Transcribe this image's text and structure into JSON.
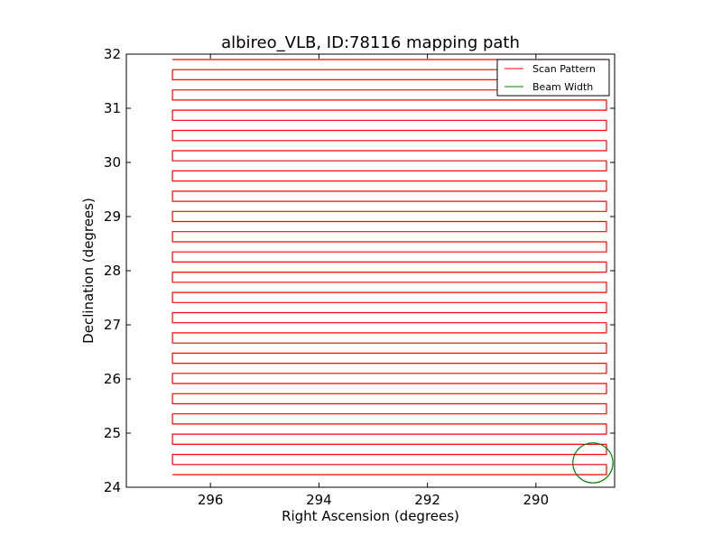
{
  "chart_data": {
    "type": "line",
    "title": "albireo_VLB, ID:78116 mapping path",
    "xlabel": "Right Ascension (degrees)",
    "ylabel": "Declination (degrees)",
    "xlim": [
      297.55,
      288.55
    ],
    "ylim": [
      24,
      32
    ],
    "x_ticks": [
      296,
      294,
      292,
      290
    ],
    "x_tick_labels": [
      "296",
      "294",
      "292",
      "290"
    ],
    "y_ticks": [
      24,
      25,
      26,
      27,
      28,
      29,
      30,
      31,
      32
    ],
    "y_tick_labels": [
      "24",
      "25",
      "26",
      "27",
      "28",
      "29",
      "30",
      "31",
      "32"
    ],
    "grid": false,
    "legend_position": "top-right",
    "series": [
      {
        "name": "Scan Pattern",
        "color": "#ff0000",
        "scan": {
          "ra_west": 296.7,
          "ra_east": 288.7,
          "dec_start": 31.9,
          "dec_end": 24.2,
          "dec_step": 0.187,
          "note_kind": "boustrophedon"
        }
      },
      {
        "name": "Beam Width",
        "color": "#008000",
        "circle": {
          "ra": 288.95,
          "dec": 24.45,
          "radius_deg": 0.37
        }
      }
    ]
  }
}
